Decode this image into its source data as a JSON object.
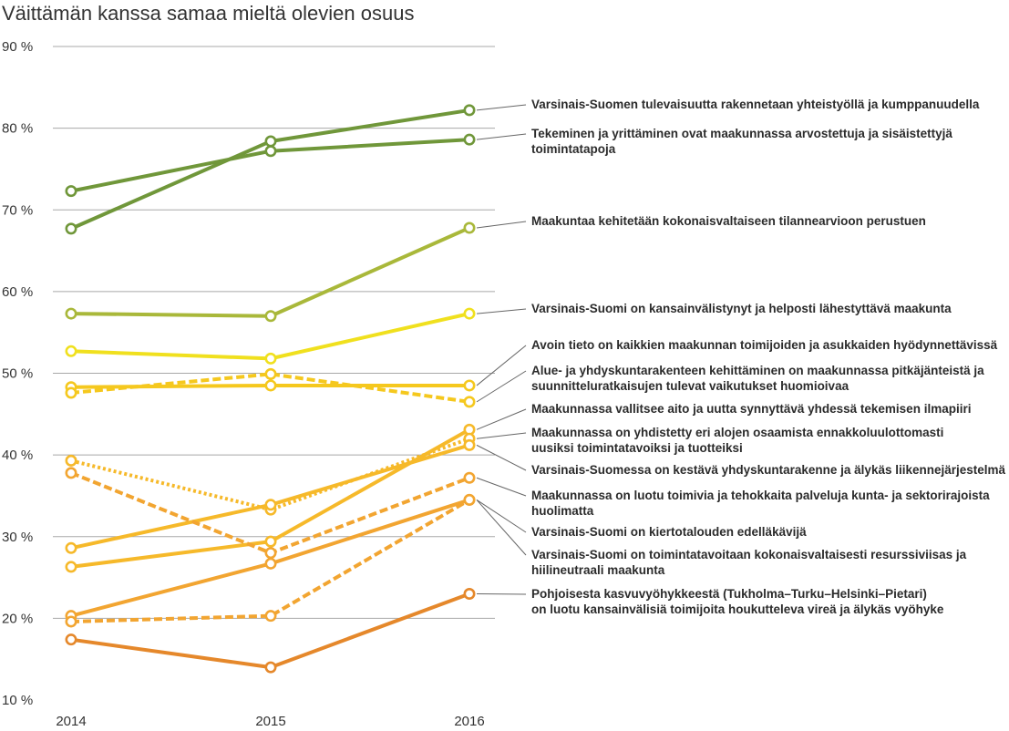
{
  "title": "Väittämän kanssa samaa mieltä olevien osuus",
  "chart_data": {
    "type": "line",
    "title": "Väittämän kanssa samaa mieltä olevien osuus",
    "x": [
      "2014",
      "2015",
      "2016"
    ],
    "ylim": [
      10,
      90
    ],
    "yticks": [
      10,
      20,
      30,
      40,
      50,
      60,
      70,
      80,
      90
    ],
    "ytick_labels": [
      "10 %",
      "20 %",
      "30 %",
      "40 %",
      "50 %",
      "60 %",
      "70 %",
      "80 %",
      "90 %"
    ],
    "grid": true,
    "legend": "right",
    "series": [
      {
        "name": "Varsinais-Suomen tulevaisuutta rakennetaan yhteistyöllä ja kumppanuudella",
        "values": [
          67.7,
          78.4,
          82.2
        ],
        "color": "#70973a",
        "dash": "solid"
      },
      {
        "name": "Tekeminen ja yrittäminen ovat maakunnassa arvostettuja ja sisäistettyjä toimintatapoja",
        "values": [
          72.3,
          77.2,
          78.6
        ],
        "color": "#70973a",
        "dash": "solid"
      },
      {
        "name": "Maakuntaa kehitetään kokonaisvaltaiseen tilannearvioon perustuen",
        "values": [
          57.3,
          57.0,
          67.8
        ],
        "color": "#a9b83a",
        "dash": "solid"
      },
      {
        "name": "Varsinais-Suomi on kansainvälistynyt ja helposti lähestyttävä maakunta",
        "values": [
          52.7,
          51.8,
          57.3
        ],
        "color": "#f0e01e",
        "dash": "solid"
      },
      {
        "name": "Avoin tieto on kaikkien maakunnan toimijoiden ja asukkaiden  hyödynnettävissä",
        "values": [
          48.3,
          48.5,
          48.5
        ],
        "color": "#f5c81e",
        "dash": "solid"
      },
      {
        "name": "Alue- ja yhdyskuntarakenteen kehittäminen on maakunnassa pitkäjänteistä ja suunnitteluratkaisujen tulevat vaikutukset huomioivaa",
        "values": [
          47.6,
          49.9,
          46.5
        ],
        "color": "#f5c81e",
        "dash": "dashed"
      },
      {
        "name": "Maakunnassa vallitsee aito ja uutta synnyttävä yhdessä tekemisen ilmapiiri",
        "values": [
          26.3,
          29.4,
          43.1
        ],
        "color": "#f6b92a",
        "dash": "solid"
      },
      {
        "name": "Maakunnassa on yhdistetty eri alojen osaamista ennakkoluulottomasti uusiksi toimintatavoiksi ja tuotteiksi",
        "values": [
          39.3,
          33.3,
          42.0
        ],
        "color": "#f6b92a",
        "dash": "dotted"
      },
      {
        "name": "Varsinais-Suomessa on kestävä yhdyskuntarakenne ja älykäs liikennejärjestelmä",
        "values": [
          28.6,
          33.9,
          41.2
        ],
        "color": "#f6b92a",
        "dash": "solid"
      },
      {
        "name": "Maakunnassa on luotu toimivia ja tehokkaita palveluja kunta- ja sektorirajoista huolimatta",
        "values": [
          37.8,
          28.0,
          37.2
        ],
        "color": "#f2a531",
        "dash": "dashed"
      },
      {
        "name": "Varsinais-Suomi on kiertotalouden edelläkävijä",
        "values": [
          20.3,
          26.7,
          34.5
        ],
        "color": "#f2a531",
        "dash": "solid"
      },
      {
        "name": "Varsinais-Suomi on toimintatavoitaan kokonaisvaltaisesti resurssiviisas ja hiilineutraali maakunta",
        "values": [
          19.6,
          20.3,
          34.5
        ],
        "color": "#f2a531",
        "dash": "dashed"
      },
      {
        "name": "Pohjoisesta kasvuvyöhykkeestä (Tukholma–Turku–Helsinki–Pietari) on luotu kansainvälisiä toimijoita houkutteleva vireä ja älykäs vyöhyke",
        "values": [
          17.4,
          14.0,
          23.0
        ],
        "color": "#e5882b",
        "dash": "solid"
      }
    ],
    "labels": [
      {
        "lines": [
          "Varsinais-Suomen tulevaisuutta rakennetaan yhteistyöllä ja kumppanuudella"
        ],
        "series": 0
      },
      {
        "lines": [
          "Tekeminen ja yrittäminen ovat maakunnassa arvostettuja ja sisäistettyjä",
          "toimintatapoja"
        ],
        "series": 1
      },
      {
        "lines": [
          "Maakuntaa kehitetään kokonaisvaltaiseen tilannearvioon perustuen"
        ],
        "series": 2
      },
      {
        "lines": [
          "Varsinais-Suomi on kansainvälistynyt ja helposti lähestyttävä maakunta"
        ],
        "series": 3
      },
      {
        "lines": [
          "Avoin tieto on kaikkien maakunnan toimijoiden ja asukkaiden  hyödynnettävissä"
        ],
        "series": 4
      },
      {
        "lines": [
          "Alue- ja yhdyskuntarakenteen kehittäminen on maakunnassa pitkäjänteistä ja",
          "suunnitteluratkaisujen tulevat vaikutukset huomioivaa"
        ],
        "series": 5
      },
      {
        "lines": [
          "Maakunnassa vallitsee aito ja uutta synnyttävä yhdessä tekemisen ilmapiiri"
        ],
        "series": 6
      },
      {
        "lines": [
          "Maakunnassa on yhdistetty eri alojen osaamista ennakkoluulottomasti",
          "uusiksi toimintatavoiksi ja tuotteiksi"
        ],
        "series": 7
      },
      {
        "lines": [
          "Varsinais-Suomessa on kestävä yhdyskuntarakenne ja älykäs liikennejärjestelmä"
        ],
        "series": 8
      },
      {
        "lines": [
          "Maakunnassa on luotu toimivia ja tehokkaita palveluja kunta- ja sektorirajoista",
          "huolimatta"
        ],
        "series": 9
      },
      {
        "lines": [
          "Varsinais-Suomi on kiertotalouden edelläkävijä"
        ],
        "series": 10
      },
      {
        "lines": [
          "Varsinais-Suomi on toimintatavoitaan kokonaisvaltaisesti resurssiviisas ja",
          "hiilineutraali maakunta"
        ],
        "series": 11
      },
      {
        "lines": [
          "Pohjoisesta kasvuvyöhykkeestä (Tukholma–Turku–Helsinki–Pietari)",
          "on luotu kansainvälisiä toimijoita houkutteleva vireä ja älykäs vyöhyke"
        ],
        "series": 12
      }
    ]
  }
}
